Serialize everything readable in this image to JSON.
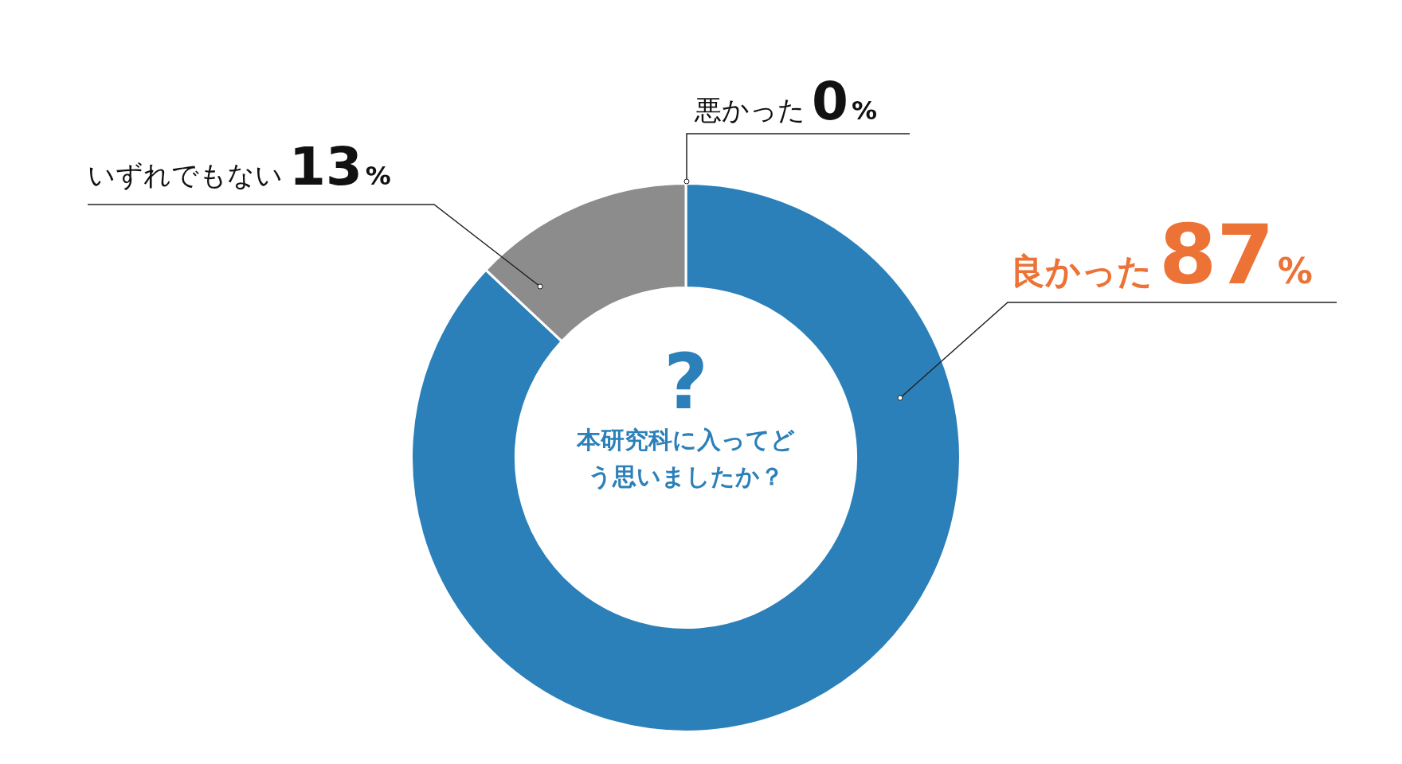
{
  "chart_data": {
    "type": "donut",
    "title": "本研究科に入ってどう思いましたか？",
    "annotations": [
      "?"
    ],
    "categories": [
      "良かった",
      "いずれでもない",
      "悪かった"
    ],
    "values": [
      87,
      13,
      0
    ],
    "colors": [
      "#2b80b9",
      "#8c8c8c",
      "#8c8c8c"
    ],
    "value_labels": [
      "87%",
      "13%",
      "0%"
    ],
    "legend": false
  }
}
